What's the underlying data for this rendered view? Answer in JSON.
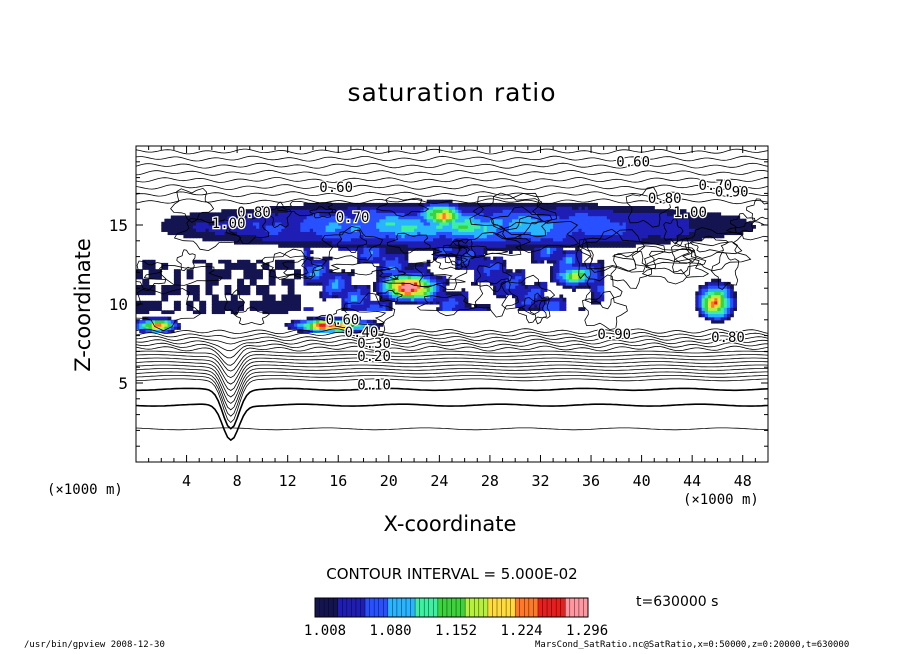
{
  "chart_data": {
    "type": "heatmap",
    "title": "saturation ratio",
    "xlabel": "X-coordinate",
    "ylabel": "Z-coordinate",
    "x_unit_left": "(×1000 m)",
    "x_unit_right": "(×1000 m)",
    "xlim": [
      0,
      50
    ],
    "ylim": [
      0,
      20
    ],
    "x_ticks": [
      4,
      8,
      12,
      16,
      20,
      24,
      28,
      32,
      36,
      40,
      44,
      48
    ],
    "y_ticks": [
      5,
      10,
      15
    ],
    "contour_interval_text": "CONTOUR INTERVAL = 5.000E-02",
    "time_text": "t=630000 s",
    "colorbar": {
      "ticks": [
        "1.008",
        "1.080",
        "1.152",
        "1.224",
        "1.296"
      ],
      "range": [
        1.0,
        1.3
      ],
      "colors": [
        "#141450",
        "#1e1eb4",
        "#2850ff",
        "#28b4ff",
        "#3cf0a0",
        "#3cd23c",
        "#b4f03c",
        "#ffdc3c",
        "#ff7828",
        "#e61e1e",
        "#ff96a0"
      ]
    },
    "contour_labels": [
      {
        "text": "0.10",
        "x": 17.5,
        "z": 4.6
      },
      {
        "text": "0.20",
        "x": 17.5,
        "z": 6.4
      },
      {
        "text": "0.30",
        "x": 17.5,
        "z": 7.2
      },
      {
        "text": "0.40",
        "x": 16.5,
        "z": 7.9
      },
      {
        "text": "0.60",
        "x": 15.0,
        "z": 8.7
      },
      {
        "text": "0.60",
        "x": 14.5,
        "z": 17.1
      },
      {
        "text": "0.70",
        "x": 15.8,
        "z": 15.2
      },
      {
        "text": "0.70",
        "x": 44.5,
        "z": 17.2
      },
      {
        "text": "0.80",
        "x": 8.0,
        "z": 15.5
      },
      {
        "text": "0.80",
        "x": 40.5,
        "z": 16.4
      },
      {
        "text": "0.90",
        "x": 45.8,
        "z": 16.8
      },
      {
        "text": "0.60",
        "x": 38.0,
        "z": 18.7
      },
      {
        "text": "1.00",
        "x": 42.5,
        "z": 15.5
      },
      {
        "text": "1.00",
        "x": 6.0,
        "z": 14.8
      },
      {
        "text": "0.90",
        "x": 36.5,
        "z": 7.8
      },
      {
        "text": "0.80",
        "x": 45.5,
        "z": 7.6
      }
    ],
    "supersaturated_regions": [
      {
        "x": [
          0,
          50
        ],
        "z": [
          13.5,
          16.2
        ],
        "peak": 1.12
      },
      {
        "x": [
          19,
          24
        ],
        "z": [
          10.2,
          11.8
        ],
        "peak": 1.3
      },
      {
        "x": [
          22,
          26
        ],
        "z": [
          14.8,
          16.2
        ],
        "peak": 1.22
      },
      {
        "x": [
          0,
          3
        ],
        "z": [
          8.3,
          8.8
        ],
        "peak": 1.28
      },
      {
        "x": [
          12,
          19
        ],
        "z": [
          8.3,
          8.8
        ],
        "peak": 1.28
      },
      {
        "x": [
          44.5,
          47
        ],
        "z": [
          9.0,
          11.2
        ],
        "peak": 1.25
      },
      {
        "x": [
          33,
          36
        ],
        "z": [
          11.2,
          12.2
        ],
        "peak": 1.2
      }
    ]
  },
  "footer": {
    "left": "/usr/bin/gpview   2008-12-30",
    "right": "MarsCond_SatRatio.nc@SatRatio,x=0:50000,z=0:20000,t=630000"
  }
}
